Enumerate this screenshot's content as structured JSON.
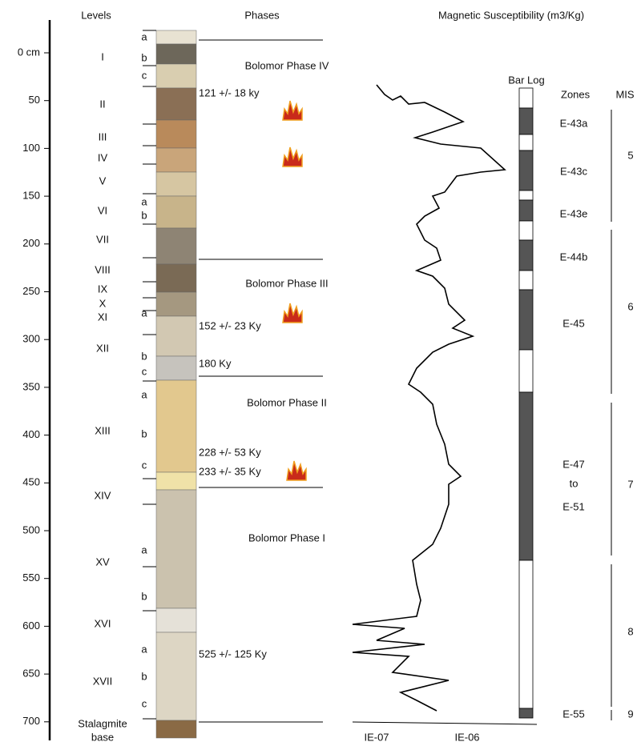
{
  "header": {
    "levels": "Levels",
    "phases": "Phases",
    "magnetic": "Magnetic Susceptibility (m3/Kg)"
  },
  "depth_axis": {
    "ticks": [
      "0 cm",
      "50",
      "100",
      "150",
      "200",
      "250",
      "300",
      "350",
      "400",
      "450",
      "500",
      "550",
      "600",
      "650",
      "700"
    ]
  },
  "levels": [
    "I",
    "II",
    "III",
    "IV",
    "V",
    "VI",
    "VII",
    "VIII",
    "IX",
    "X",
    "XI",
    "XII",
    "XIII",
    "XIV",
    "XV",
    "XVI",
    "XVII",
    "Stalagmite",
    "base"
  ],
  "sublevels": [
    "a",
    "b",
    "c",
    "a",
    "b",
    "a",
    "b",
    "c",
    "a",
    "b",
    "c",
    "a",
    "b",
    "a",
    "b",
    "c"
  ],
  "phases": [
    "Bolomor Phase IV",
    "Bolomor Phase III",
    "Bolomor Phase II",
    "Bolomor Phase I"
  ],
  "dates": [
    "121 +/- 18 ky",
    "152 +/- 23 Ky",
    "180 Ky",
    "228 +/- 53 Ky",
    "233 +/- 35 Ky",
    "525 +/- 125 Ky"
  ],
  "magnetic": {
    "x_labels": [
      "IE-07",
      "IE-06"
    ],
    "bar_log": "Bar Log",
    "zones_title": "Zones",
    "mis_title": "MIS",
    "zones": [
      "E-43a",
      "E-43c",
      "E-43e",
      "E-44b",
      "E-45",
      "E-47",
      "to",
      "E-51",
      "E-55"
    ],
    "mis": [
      "5",
      "6",
      "7",
      "8",
      "9"
    ]
  }
}
